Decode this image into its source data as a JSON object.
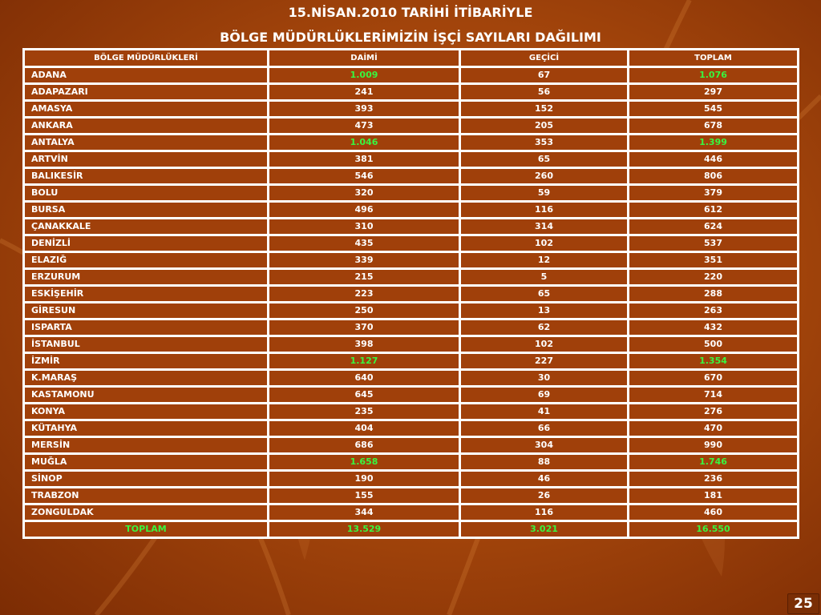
{
  "title_line1": "15.NİSAN.2010 TARİHİ İTİBARİYLE",
  "title_line2": "BÖLGE MÜDÜRLÜKLERİMİZİN İŞÇİ SAYILARI DAĞILIMI",
  "columns": [
    "BÖLGE MÜDÜRLÜKLERİ",
    "DAİMİ",
    "GEÇİCİ",
    "TOPLAM"
  ],
  "highlight_color": "#39f53f",
  "rows": [
    {
      "name": "ADANA",
      "daimi": "1.009",
      "gecici": "67",
      "toplam": "1.076",
      "highlight": true
    },
    {
      "name": "ADAPAZARI",
      "daimi": "241",
      "gecici": "56",
      "toplam": "297",
      "highlight": false
    },
    {
      "name": "AMASYA",
      "daimi": "393",
      "gecici": "152",
      "toplam": "545",
      "highlight": false
    },
    {
      "name": "ANKARA",
      "daimi": "473",
      "gecici": "205",
      "toplam": "678",
      "highlight": false
    },
    {
      "name": "ANTALYA",
      "daimi": "1.046",
      "gecici": "353",
      "toplam": "1.399",
      "highlight": true
    },
    {
      "name": "ARTVİN",
      "daimi": "381",
      "gecici": "65",
      "toplam": "446",
      "highlight": false
    },
    {
      "name": "BALIKESİR",
      "daimi": "546",
      "gecici": "260",
      "toplam": "806",
      "highlight": false
    },
    {
      "name": "BOLU",
      "daimi": "320",
      "gecici": "59",
      "toplam": "379",
      "highlight": false
    },
    {
      "name": "BURSA",
      "daimi": "496",
      "gecici": "116",
      "toplam": "612",
      "highlight": false
    },
    {
      "name": "ÇANAKKALE",
      "daimi": "310",
      "gecici": "314",
      "toplam": "624",
      "highlight": false
    },
    {
      "name": "DENİZLİ",
      "daimi": "435",
      "gecici": "102",
      "toplam": "537",
      "highlight": false
    },
    {
      "name": "ELAZIĞ",
      "daimi": "339",
      "gecici": "12",
      "toplam": "351",
      "highlight": false
    },
    {
      "name": "ERZURUM",
      "daimi": "215",
      "gecici": "5",
      "toplam": "220",
      "highlight": false
    },
    {
      "name": "ESKİŞEHİR",
      "daimi": "223",
      "gecici": "65",
      "toplam": "288",
      "highlight": false
    },
    {
      "name": "GİRESUN",
      "daimi": "250",
      "gecici": "13",
      "toplam": "263",
      "highlight": false
    },
    {
      "name": "ISPARTA",
      "daimi": "370",
      "gecici": "62",
      "toplam": "432",
      "highlight": false
    },
    {
      "name": "İSTANBUL",
      "daimi": "398",
      "gecici": "102",
      "toplam": "500",
      "highlight": false
    },
    {
      "name": "İZMİR",
      "daimi": "1.127",
      "gecici": "227",
      "toplam": "1.354",
      "highlight": true
    },
    {
      "name": "K.MARAŞ",
      "daimi": "640",
      "gecici": "30",
      "toplam": "670",
      "highlight": false
    },
    {
      "name": "KASTAMONU",
      "daimi": "645",
      "gecici": "69",
      "toplam": "714",
      "highlight": false
    },
    {
      "name": "KONYA",
      "daimi": "235",
      "gecici": "41",
      "toplam": "276",
      "highlight": false
    },
    {
      "name": "KÜTAHYA",
      "daimi": "404",
      "gecici": "66",
      "toplam": "470",
      "highlight": false
    },
    {
      "name": "MERSİN",
      "daimi": "686",
      "gecici": "304",
      "toplam": "990",
      "highlight": false
    },
    {
      "name": "MUĞLA",
      "daimi": "1.658",
      "gecici": "88",
      "toplam": "1.746",
      "highlight": true
    },
    {
      "name": "SİNOP",
      "daimi": "190",
      "gecici": "46",
      "toplam": "236",
      "highlight": false
    },
    {
      "name": "TRABZON",
      "daimi": "155",
      "gecici": "26",
      "toplam": "181",
      "highlight": false
    },
    {
      "name": "ZONGULDAK",
      "daimi": "344",
      "gecici": "116",
      "toplam": "460",
      "highlight": false
    }
  ],
  "total": {
    "name": "TOPLAM",
    "daimi": "13.529",
    "gecici": "3.021",
    "toplam": "16.550"
  },
  "page_number": "25"
}
